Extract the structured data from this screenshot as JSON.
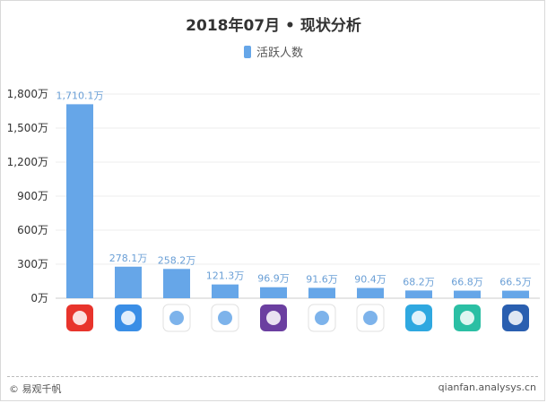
{
  "chart_data": {
    "type": "bar",
    "title": "2018年07月 • 现状分析",
    "legend": {
      "position": "top",
      "entries": [
        "活跃人数"
      ]
    },
    "series": [
      {
        "name": "活跃人数",
        "color": "#66a6e8",
        "values": [
          1710.1,
          278.1,
          258.2,
          121.3,
          96.9,
          91.6,
          90.4,
          68.2,
          66.8,
          66.5
        ],
        "labels": [
          "1,710.1万",
          "278.1万",
          "258.2万",
          "121.3万",
          "96.9万",
          "91.6万",
          "90.4万",
          "68.2万",
          "66.8万",
          "66.5万"
        ]
      }
    ],
    "categories_icons": [
      {
        "icon": "red-app-icon",
        "color": "#e8342c"
      },
      {
        "icon": "blue-heart-app-icon",
        "color": "#3a8ee6"
      },
      {
        "icon": "infinity-app-icon",
        "color": "#ffffff"
      },
      {
        "icon": "colorful-petals-app-icon",
        "color": "#ffffff"
      },
      {
        "icon": "purple-butterfly-app-icon",
        "color": "#6b3fa0"
      },
      {
        "icon": "people-app-icon",
        "color": "#ffffff"
      },
      {
        "icon": "1haowang-app-icon",
        "color": "#ffffff"
      },
      {
        "icon": "runner-app-icon",
        "color": "#2fa8e0"
      },
      {
        "icon": "teal-heart-app-icon",
        "color": "#2bbfa4"
      },
      {
        "icon": "yao-app-icon",
        "color": "#2a5fb0"
      }
    ],
    "y_axis": {
      "min": 0,
      "max": 1800,
      "ticks": [
        0,
        300,
        600,
        900,
        1200,
        1500,
        1800
      ],
      "tick_labels": [
        "0万",
        "300万",
        "600万",
        "900万",
        "1,200万",
        "1,500万",
        "1,800万"
      ]
    },
    "grid": true
  },
  "footer": {
    "left": "© 易观千帆",
    "right": "qianfan.analysys.cn"
  }
}
